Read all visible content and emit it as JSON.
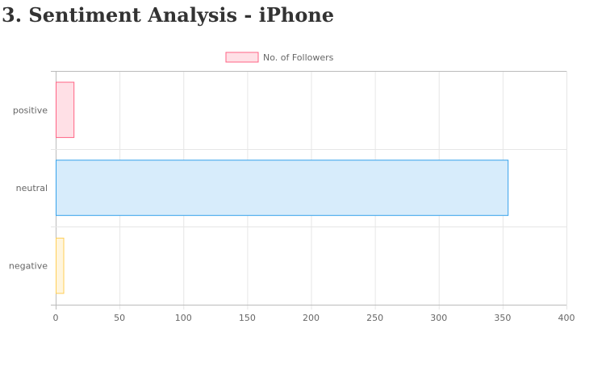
{
  "page": {
    "title": "3. Sentiment Analysis - iPhone"
  },
  "chart_data": {
    "type": "bar",
    "orientation": "horizontal",
    "categories": [
      "positive",
      "neutral",
      "negative"
    ],
    "series": [
      {
        "name": "No. of Followers",
        "values": [
          14,
          354,
          6
        ]
      }
    ],
    "bar_fill_colors": [
      "#ffe0e6",
      "#d7ecfb",
      "#fff5dd"
    ],
    "bar_border_colors": [
      "#ff6384",
      "#36a2eb",
      "#ffce56"
    ],
    "legend_fill_color": "#ffe0e6",
    "legend_border_color": "#ff6384",
    "xlim": [
      0,
      400
    ],
    "xticks": [
      0,
      50,
      100,
      150,
      200,
      250,
      300,
      350,
      400
    ],
    "grid": true,
    "legend_position": "top"
  }
}
